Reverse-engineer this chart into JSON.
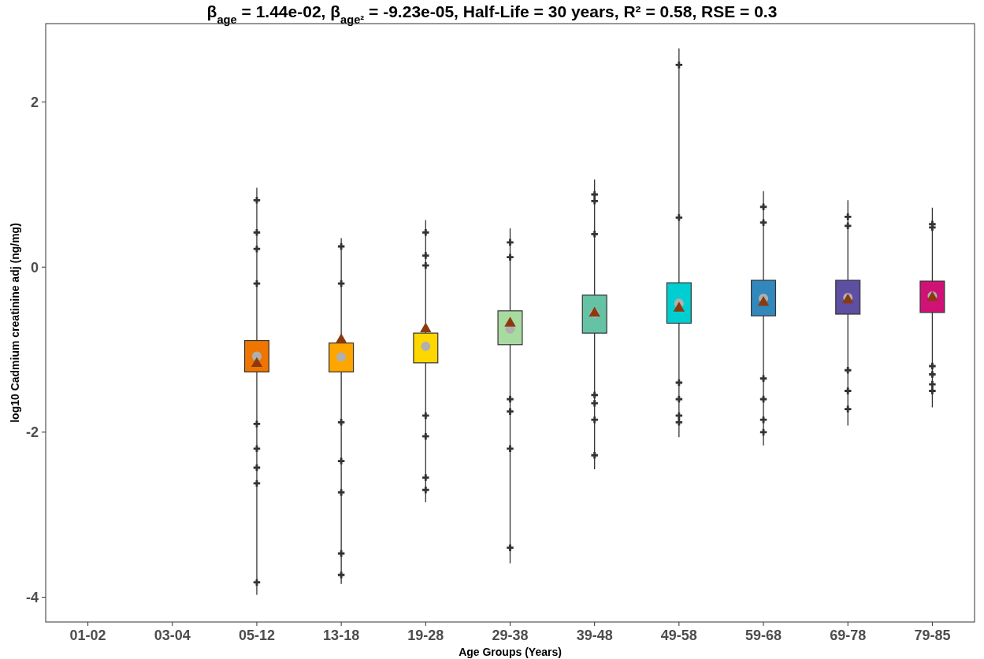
{
  "chart_data": {
    "type": "box",
    "title": "β$_{age}$ = 1.44e-02, β$_{age²}$ = -9.23e-05, Half-Life = 30 years, R² = 0.58, RSE = 0.3",
    "xlabel": "Age Groups (Years)",
    "ylabel": "log10 Cadmium creatinine adj (ng/mg)",
    "categories": [
      "01-02",
      "03-04",
      "05-12",
      "13-18",
      "19-28",
      "29-38",
      "39-48",
      "49-58",
      "59-68",
      "69-78",
      "79-85"
    ],
    "colors": [
      null,
      null,
      "#ee7600",
      "#ffa500",
      "#ffd700",
      "#a8dba0",
      "#66c2a5",
      "#00ced1",
      "#3288bd",
      "#5e4fa2",
      "#d01277"
    ],
    "boxes": [
      null,
      null,
      {
        "low": -3.97,
        "q1": -1.27,
        "median": -1.08,
        "q3": -0.89,
        "high": 0.96,
        "mean": -1.17,
        "outliers": [
          0.81,
          0.42,
          0.22,
          -0.2,
          -1.9,
          -2.2,
          -2.43,
          -2.62,
          -3.82
        ]
      },
      {
        "low": -3.84,
        "q1": -1.27,
        "median": -1.09,
        "q3": -0.92,
        "high": 0.35,
        "mean": -0.88,
        "outliers": [
          0.25,
          -0.2,
          -1.88,
          -2.35,
          -2.73,
          -3.47,
          -3.73
        ]
      },
      {
        "low": -2.85,
        "q1": -1.16,
        "median": -0.96,
        "q3": -0.8,
        "high": 0.57,
        "mean": -0.75,
        "outliers": [
          0.42,
          0.14,
          0.02,
          -1.8,
          -2.05,
          -2.55,
          -2.7
        ]
      },
      {
        "low": -3.59,
        "q1": -0.94,
        "median": -0.75,
        "q3": -0.53,
        "high": 0.47,
        "mean": -0.68,
        "outliers": [
          0.3,
          0.12,
          -1.6,
          -1.75,
          -2.2,
          -3.4
        ]
      },
      {
        "low": -2.45,
        "q1": -0.8,
        "median": -0.56,
        "q3": -0.34,
        "high": 1.06,
        "mean": -0.56,
        "outliers": [
          0.88,
          0.8,
          0.4,
          -1.55,
          -1.65,
          -1.85,
          -2.28
        ]
      },
      {
        "low": -2.06,
        "q1": -0.68,
        "median": -0.44,
        "q3": -0.19,
        "high": 2.65,
        "mean": -0.5,
        "outliers": [
          2.45,
          0.6,
          -1.4,
          -1.6,
          -1.8,
          -1.88
        ]
      },
      {
        "low": -2.16,
        "q1": -0.59,
        "median": -0.38,
        "q3": -0.16,
        "high": 0.92,
        "mean": -0.43,
        "outliers": [
          0.73,
          0.54,
          -1.35,
          -1.6,
          -1.85,
          -2.0
        ]
      },
      {
        "low": -1.92,
        "q1": -0.57,
        "median": -0.37,
        "q3": -0.16,
        "high": 0.81,
        "mean": -0.4,
        "outliers": [
          0.61,
          0.5,
          -1.25,
          -1.5,
          -1.72
        ]
      },
      {
        "low": -1.7,
        "q1": -0.55,
        "median": -0.35,
        "q3": -0.17,
        "high": 0.72,
        "mean": -0.37,
        "outliers": [
          0.52,
          0.48,
          -1.2,
          -1.3,
          -1.42,
          -1.5
        ]
      }
    ],
    "ylim": [
      -4.3,
      2.95
    ],
    "yticks": [
      -4,
      -2,
      0,
      2
    ],
    "grid": false
  }
}
